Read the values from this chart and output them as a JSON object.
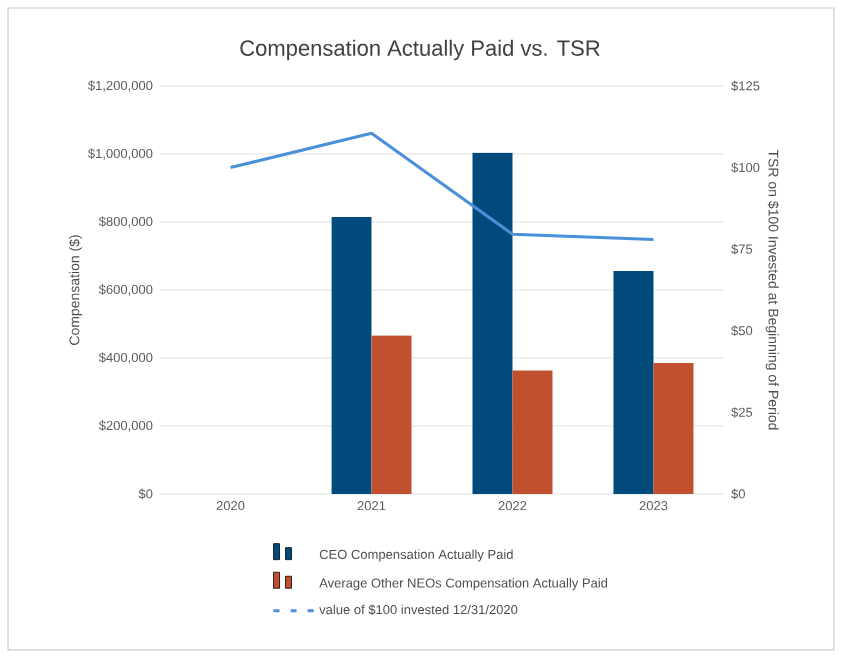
{
  "chart_data": {
    "type": "bar",
    "title": "Compensation Actually Paid vs. TSR",
    "ylabel": "Compensation ($)",
    "y2label": "TSR on $100 Invested at Beginning of Period",
    "categories": [
      "2020",
      "2021",
      "2022",
      "2023"
    ],
    "series": [
      {
        "name": "CEO Compensation Actually Paid",
        "color": "#004b7c",
        "values": [
          null,
          815000,
          1004000,
          656000
        ]
      },
      {
        "name": "Average Other NEOs Compensation Actually Paid",
        "color": "#c0502e",
        "values": [
          null,
          466000,
          363000,
          385000
        ]
      },
      {
        "name": "value of $100 invested 12/31/2020",
        "type": "line",
        "axis": "y2",
        "color": "#4a90d9",
        "values": [
          100,
          110.5,
          79.6,
          78
        ]
      }
    ],
    "ylim": [
      0,
      1200000
    ],
    "yticks": [
      {
        "value": 0,
        "label": "$0"
      },
      {
        "value": 200000,
        "label": "$200,000"
      },
      {
        "value": 400000,
        "label": "$400,000"
      },
      {
        "value": 600000,
        "label": "$600,000"
      },
      {
        "value": 800000,
        "label": "$800,000"
      },
      {
        "value": 1000000,
        "label": "$1,000,000"
      },
      {
        "value": 1200000,
        "label": "$1,200,000"
      }
    ],
    "y2lim": [
      0,
      125
    ],
    "y2ticks": [
      {
        "value": 0,
        "label": "$0"
      },
      {
        "value": 25,
        "label": "$25"
      },
      {
        "value": 50,
        "label": "$50"
      },
      {
        "value": 75,
        "label": "$75"
      },
      {
        "value": 100,
        "label": "$100"
      },
      {
        "value": 125,
        "label": "$125"
      }
    ],
    "grid": "y",
    "legend": "bottom",
    "marker": "none"
  }
}
